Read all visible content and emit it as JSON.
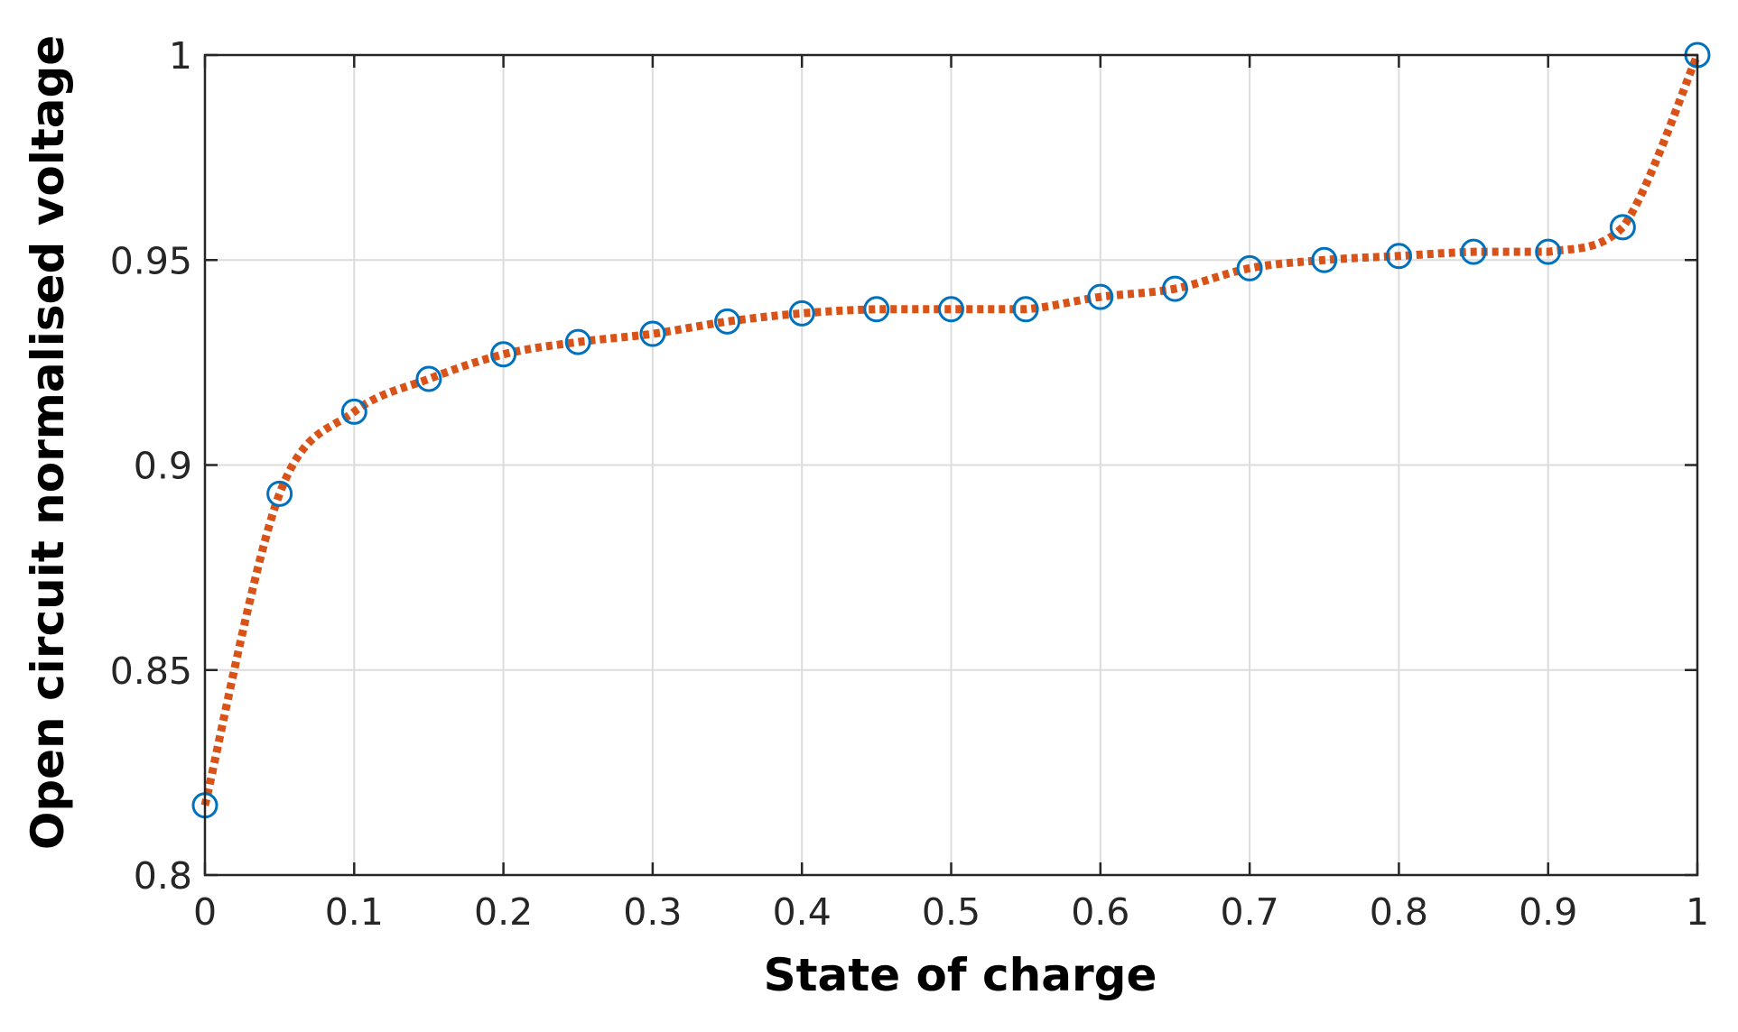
{
  "chart_data": {
    "type": "line",
    "xlabel": "State of charge",
    "ylabel": "Open circuit normalised voltage",
    "xlim": [
      0,
      1
    ],
    "ylim": [
      0.8,
      1
    ],
    "grid": true,
    "x_ticks": [
      "0",
      "0.1",
      "0.2",
      "0.3",
      "0.4",
      "0.5",
      "0.6",
      "0.7",
      "0.8",
      "0.9",
      "1"
    ],
    "y_ticks": [
      "0.8",
      "0.85",
      "0.9",
      "0.95",
      "1"
    ],
    "x_tick_values": [
      0,
      0.1,
      0.2,
      0.3,
      0.4,
      0.5,
      0.6,
      0.7,
      0.8,
      0.9,
      1
    ],
    "y_tick_values": [
      0.8,
      0.85,
      0.9,
      0.95,
      1
    ],
    "series": [
      {
        "style": "markers",
        "marker": "circle",
        "color": "#0072BD",
        "x": [
          0,
          0.05,
          0.1,
          0.15,
          0.2,
          0.25,
          0.3,
          0.35,
          0.4,
          0.45,
          0.5,
          0.55,
          0.6,
          0.65,
          0.7,
          0.75,
          0.8,
          0.85,
          0.9,
          0.95,
          1
        ],
        "y": [
          0.817,
          0.893,
          0.913,
          0.921,
          0.927,
          0.93,
          0.932,
          0.935,
          0.937,
          0.938,
          0.938,
          0.938,
          0.941,
          0.943,
          0.948,
          0.95,
          0.951,
          0.952,
          0.952,
          0.958,
          1.0
        ]
      },
      {
        "style": "dotted-line",
        "color": "#D95319",
        "x": [
          0,
          0.05,
          0.1,
          0.15,
          0.2,
          0.25,
          0.3,
          0.35,
          0.4,
          0.45,
          0.5,
          0.55,
          0.6,
          0.65,
          0.7,
          0.75,
          0.8,
          0.85,
          0.9,
          0.95,
          1
        ],
        "y": [
          0.817,
          0.893,
          0.913,
          0.921,
          0.927,
          0.93,
          0.932,
          0.935,
          0.937,
          0.938,
          0.938,
          0.938,
          0.941,
          0.943,
          0.948,
          0.95,
          0.951,
          0.952,
          0.952,
          0.958,
          1.0
        ]
      }
    ]
  }
}
